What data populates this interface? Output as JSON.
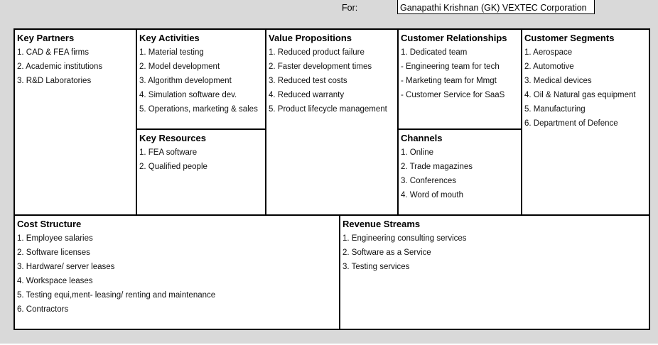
{
  "header": {
    "for_label": "For:",
    "for_value": "Ganapathi Krishnan (GK) VEXTEC Corporation"
  },
  "blocks": {
    "key_partners": {
      "title": "Key Partners",
      "items": [
        "1. CAD & FEA firms",
        "2. Academic institutions",
        "3. R&D Laboratories"
      ]
    },
    "key_activities": {
      "title": "Key Activities",
      "items": [
        "1. Material testing",
        "2. Model development",
        "3. Algorithm development",
        "4. Simulation software dev.",
        "5. Operations, marketing & sales"
      ]
    },
    "key_resources": {
      "title": "Key Resources",
      "items": [
        "1. FEA software",
        "2. Qualified people"
      ]
    },
    "value_propositions": {
      "title": "Value Propositions",
      "items": [
        "1. Reduced product failure",
        "2. Faster development times",
        "3. Reduced test costs",
        "4. Reduced warranty",
        "5. Product lifecycle management"
      ]
    },
    "customer_relationships": {
      "title": "Customer Relationships",
      "items": [
        "1. Dedicated team",
        "- Engineering team for tech",
        "- Marketing team for Mmgt",
        "- Customer Service for SaaS"
      ]
    },
    "channels": {
      "title": "Channels",
      "items": [
        "1. Online",
        "2. Trade magazines",
        "3. Conferences",
        "4. Word of mouth"
      ]
    },
    "customer_segments": {
      "title": "Customer Segments",
      "items": [
        "1. Aerospace",
        "2. Automotive",
        "3. Medical devices",
        "4. Oil & Natural gas equipment",
        "5. Manufacturing",
        "6. Department of Defence"
      ]
    },
    "cost_structure": {
      "title": "Cost Structure",
      "items": [
        "1. Employee salaries",
        "2. Software licenses",
        "3. Hardware/ server leases",
        "4. Workspace leases",
        "5. Testing equi,ment- leasing/ renting and maintenance",
        "6. Contractors"
      ]
    },
    "revenue_streams": {
      "title": "Revenue Streams",
      "items": [
        "1. Engineering consulting services",
        "2. Software as a Service",
        "3. Testing services"
      ]
    }
  }
}
